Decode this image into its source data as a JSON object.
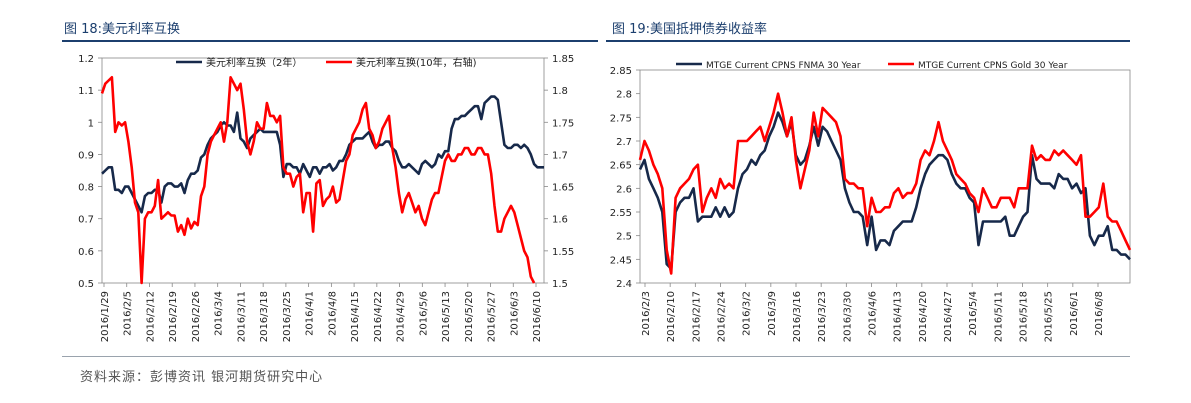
{
  "footer": {
    "source": "资料来源：彭博资讯    银河期货研究中心"
  },
  "chart_data": [
    {
      "type": "line",
      "title": "图 18:美元利率互换",
      "x_ticks": [
        "2016/1/29",
        "2016/2/5",
        "2016/2/12",
        "2016/2/19",
        "2016/2/26",
        "2016/3/4",
        "2016/3/11",
        "2016/3/18",
        "2016/3/25",
        "2016/4/1",
        "2016/4/8",
        "2016/4/15",
        "2016/4/22",
        "2016/4/29",
        "2016/5/6",
        "2016/5/13",
        "2016/5/20",
        "2016/5/27",
        "2016/6/3",
        "2016/6/10"
      ],
      "ylim_left": [
        0.5,
        1.2
      ],
      "ylim_right": [
        1.5,
        1.85
      ],
      "y_ticks_left": [
        "0.5",
        "0.6",
        "0.7",
        "0.8",
        "0.9",
        "1",
        "1.1",
        "1.2"
      ],
      "y_ticks_right": [
        "1.5",
        "1.55",
        "1.6",
        "1.65",
        "1.7",
        "1.75",
        "1.8",
        "1.85"
      ],
      "legend_position": "top",
      "series": [
        {
          "name": "美元利率互换（2年）",
          "axis": "left",
          "color": "#17294a",
          "values": [
            0.84,
            0.85,
            0.86,
            0.86,
            0.79,
            0.79,
            0.78,
            0.8,
            0.8,
            0.78,
            0.76,
            0.74,
            0.72,
            0.77,
            0.78,
            0.78,
            0.79,
            0.79,
            0.75,
            0.8,
            0.81,
            0.81,
            0.8,
            0.8,
            0.81,
            0.78,
            0.82,
            0.84,
            0.84,
            0.85,
            0.89,
            0.9,
            0.93,
            0.95,
            0.96,
            0.97,
            0.99,
            1.0,
            0.99,
            0.99,
            0.97,
            1.03,
            0.95,
            0.94,
            0.92,
            0.95,
            0.96,
            0.97,
            0.98,
            0.97,
            0.97,
            0.97,
            0.97,
            0.97,
            0.93,
            0.83,
            0.87,
            0.87,
            0.86,
            0.86,
            0.84,
            0.87,
            0.85,
            0.83,
            0.86,
            0.86,
            0.84,
            0.86,
            0.86,
            0.87,
            0.85,
            0.86,
            0.88,
            0.88,
            0.9,
            0.93,
            0.94,
            0.95,
            0.95,
            0.95,
            0.96,
            0.97,
            0.94,
            0.92,
            0.93,
            0.93,
            0.94,
            0.94,
            0.92,
            0.91,
            0.88,
            0.86,
            0.86,
            0.87,
            0.86,
            0.85,
            0.84,
            0.87,
            0.88,
            0.87,
            0.86,
            0.87,
            0.9,
            0.89,
            0.91,
            0.91,
            0.98,
            1.01,
            1.01,
            1.02,
            1.02,
            1.03,
            1.04,
            1.05,
            1.05,
            1.01,
            1.06,
            1.07,
            1.08,
            1.08,
            1.07,
            1.0,
            0.93,
            0.92,
            0.92,
            0.93,
            0.93,
            0.92,
            0.93,
            0.92,
            0.9,
            0.87,
            0.86,
            0.86,
            0.86
          ]
        },
        {
          "name": "美元利率互换(10年，右轴)",
          "axis": "right",
          "color": "#ff0000",
          "values": [
            1.795,
            1.81,
            1.815,
            1.82,
            1.735,
            1.75,
            1.745,
            1.75,
            1.72,
            1.68,
            1.625,
            1.61,
            1.5,
            1.6,
            1.61,
            1.61,
            1.62,
            1.66,
            1.6,
            1.605,
            1.61,
            1.605,
            1.605,
            1.58,
            1.59,
            1.575,
            1.6,
            1.585,
            1.595,
            1.59,
            1.635,
            1.65,
            1.7,
            1.72,
            1.73,
            1.74,
            1.75,
            1.72,
            1.75,
            1.82,
            1.81,
            1.8,
            1.81,
            1.77,
            1.72,
            1.7,
            1.72,
            1.75,
            1.74,
            1.74,
            1.78,
            1.76,
            1.76,
            1.75,
            1.76,
            1.68,
            1.67,
            1.67,
            1.65,
            1.665,
            1.67,
            1.61,
            1.64,
            1.64,
            1.58,
            1.655,
            1.66,
            1.62,
            1.63,
            1.635,
            1.65,
            1.625,
            1.63,
            1.66,
            1.69,
            1.7,
            1.73,
            1.74,
            1.75,
            1.77,
            1.78,
            1.74,
            1.73,
            1.71,
            1.72,
            1.74,
            1.75,
            1.76,
            1.71,
            1.68,
            1.64,
            1.61,
            1.63,
            1.64,
            1.625,
            1.61,
            1.62,
            1.6,
            1.59,
            1.61,
            1.63,
            1.64,
            1.64,
            1.665,
            1.69,
            1.7,
            1.69,
            1.69,
            1.7,
            1.7,
            1.71,
            1.71,
            1.7,
            1.7,
            1.71,
            1.71,
            1.7,
            1.7,
            1.67,
            1.62,
            1.58,
            1.58,
            1.6,
            1.61,
            1.62,
            1.61,
            1.59,
            1.57,
            1.55,
            1.54,
            1.51,
            1.5
          ]
        }
      ]
    },
    {
      "type": "line",
      "title": "图 19:美国抵押债券收益率",
      "x_ticks": [
        "2016/2/3",
        "2016/2/10",
        "2016/2/17",
        "2016/2/24",
        "2016/3/2",
        "2016/3/9",
        "2016/3/16",
        "2016/3/23",
        "2016/3/30",
        "2016/4/6",
        "2016/4/13",
        "2016/4/20",
        "2016/4/27",
        "2016/5/4",
        "2016/5/11",
        "2016/5/18",
        "2016/5/25",
        "2016/6/1",
        "2016/6/8"
      ],
      "ylim": [
        2.4,
        2.85
      ],
      "y_ticks": [
        "2.4",
        "2.45",
        "2.5",
        "2.55",
        "2.6",
        "2.65",
        "2.7",
        "2.75",
        "2.8",
        "2.85"
      ],
      "legend_position": "top",
      "series": [
        {
          "name": "MTGE Current CPNS FNMA 30 Year",
          "color": "#17294a",
          "values": [
            2.64,
            2.66,
            2.62,
            2.6,
            2.58,
            2.55,
            2.44,
            2.43,
            2.55,
            2.57,
            2.58,
            2.58,
            2.6,
            2.53,
            2.54,
            2.54,
            2.54,
            2.56,
            2.54,
            2.56,
            2.54,
            2.55,
            2.6,
            2.63,
            2.64,
            2.66,
            2.65,
            2.67,
            2.68,
            2.71,
            2.73,
            2.76,
            2.74,
            2.71,
            2.74,
            2.67,
            2.65,
            2.66,
            2.69,
            2.73,
            2.69,
            2.73,
            2.72,
            2.7,
            2.68,
            2.66,
            2.6,
            2.57,
            2.55,
            2.55,
            2.54,
            2.48,
            2.54,
            2.47,
            2.49,
            2.49,
            2.48,
            2.51,
            2.52,
            2.53,
            2.53,
            2.53,
            2.56,
            2.6,
            2.63,
            2.65,
            2.66,
            2.67,
            2.67,
            2.66,
            2.63,
            2.61,
            2.6,
            2.6,
            2.58,
            2.57,
            2.48,
            2.53,
            2.53,
            2.53,
            2.53,
            2.53,
            2.54,
            2.5,
            2.5,
            2.52,
            2.54,
            2.55,
            2.67,
            2.62,
            2.61,
            2.61,
            2.61,
            2.6,
            2.63,
            2.62,
            2.62,
            2.6,
            2.61,
            2.59,
            2.6,
            2.5,
            2.48,
            2.5,
            2.5,
            2.52,
            2.47,
            2.47,
            2.46,
            2.46,
            2.45
          ]
        },
        {
          "name": "MTGE Current CPNS Gold 30 Year",
          "color": "#ff0000",
          "values": [
            2.66,
            2.7,
            2.68,
            2.65,
            2.63,
            2.6,
            2.47,
            2.42,
            2.58,
            2.6,
            2.61,
            2.62,
            2.64,
            2.65,
            2.55,
            2.58,
            2.6,
            2.58,
            2.62,
            2.6,
            2.61,
            2.6,
            2.7,
            2.7,
            2.7,
            2.71,
            2.72,
            2.73,
            2.7,
            2.73,
            2.76,
            2.8,
            2.76,
            2.71,
            2.75,
            2.66,
            2.6,
            2.64,
            2.68,
            2.76,
            2.71,
            2.77,
            2.76,
            2.75,
            2.74,
            2.71,
            2.62,
            2.61,
            2.61,
            2.6,
            2.6,
            2.52,
            2.58,
            2.55,
            2.55,
            2.56,
            2.56,
            2.59,
            2.6,
            2.58,
            2.59,
            2.59,
            2.61,
            2.66,
            2.68,
            2.67,
            2.7,
            2.74,
            2.7,
            2.68,
            2.66,
            2.63,
            2.62,
            2.61,
            2.59,
            2.58,
            2.55,
            2.6,
            2.58,
            2.56,
            2.56,
            2.58,
            2.58,
            2.58,
            2.56,
            2.6,
            2.6,
            2.6,
            2.69,
            2.66,
            2.67,
            2.66,
            2.66,
            2.68,
            2.67,
            2.68,
            2.67,
            2.66,
            2.65,
            2.67,
            2.54,
            2.54,
            2.55,
            2.56,
            2.61,
            2.54,
            2.53,
            2.53,
            2.51,
            2.49,
            2.47
          ]
        }
      ]
    }
  ]
}
